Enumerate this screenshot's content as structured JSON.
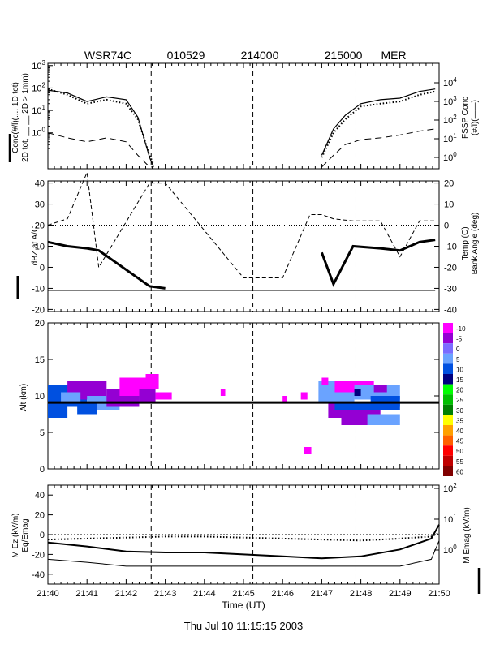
{
  "header": {
    "radar": "WSR74C",
    "date_code": "010529",
    "time_start": "214000",
    "time_end": "215000",
    "site": "MER"
  },
  "footer": {
    "timestamp": "Thu Jul 10 11:15:15 2003"
  },
  "x_axis": {
    "title": "Time (UT)",
    "tick_labels": [
      "21:40",
      "21:41",
      "21:42",
      "21:43",
      "21:44",
      "21:45",
      "21:46",
      "21:47",
      "21:48",
      "21:49",
      "21:50"
    ]
  },
  "colors": {
    "magenta": "#ff00ff",
    "purple": "#9400d3",
    "lightblue": "#6aa3ff",
    "blue": "#0050e0",
    "black": "#000000"
  },
  "chart_data": [
    {
      "type": "line",
      "panel": "concentration",
      "ylabel_left": "Conc(#/l)(.... 1D tot)",
      "ylabel_left_2": "2D tot, __ __ 2D > 1mm)",
      "ylabel_right": "FSSP Conc",
      "ylabel_right_2": "(#/l)(——)",
      "y_ticks_left": [
        "10^3",
        "10^2",
        "10^1",
        "10^0"
      ],
      "y_ticks_right": [
        "10^4",
        "10^3",
        "10^2",
        "10^1",
        "10^0"
      ],
      "ylim_log": [
        -1.6,
        3.1
      ],
      "x": [
        "21:40",
        "21:40.5",
        "21:41",
        "21:41.5",
        "21:42",
        "21:42.3",
        "21:42.6",
        "21:42.7",
        "21:47",
        "21:47.3",
        "21:47.6",
        "21:48",
        "21:48.5",
        "21:49",
        "21:49.5",
        "21:49.9"
      ],
      "series": [
        {
          "name": "2D tot",
          "values": [
            80,
            60,
            25,
            40,
            30,
            5,
            0.08,
            0.03,
            0.1,
            1.5,
            6,
            20,
            30,
            35,
            70,
            90
          ]
        },
        {
          "name": "1D tot",
          "values": [
            90,
            50,
            20,
            30,
            20,
            4,
            0.1,
            0.04,
            0.08,
            1.0,
            4,
            15,
            20,
            25,
            50,
            70
          ]
        },
        {
          "name": "2D > 1mm",
          "values": [
            1,
            0.6,
            0.4,
            0.6,
            0.4,
            0.1,
            0.03,
            0.03,
            0.03,
            0.1,
            0.3,
            0.5,
            0.6,
            0.8,
            1.2,
            1.5
          ]
        }
      ]
    },
    {
      "type": "line",
      "panel": "reflectivity_temp_bank",
      "ylabel_left": "dBZ at A/C",
      "ylabel_right": "Temp (C)",
      "ylabel_right_2": "Bank Angle (deg)",
      "y_ticks_left": [
        "40",
        "30",
        "20",
        "10",
        "0",
        "-10",
        "-20"
      ],
      "y_ticks_right": [
        "20",
        "10",
        "0",
        "-10",
        "-20",
        "-30",
        "-40"
      ],
      "ylim_left": [
        -21,
        41
      ],
      "ylim_right": [
        -41,
        21
      ],
      "x": [
        "21:40",
        "21:40.5",
        "21:41",
        "21:41.3",
        "21:42.6",
        "21:43",
        "21:45",
        "21:46",
        "21:46.7",
        "21:47",
        "21:47.3",
        "21:47.8",
        "21:48.5",
        "21:49",
        "21:49.5",
        "21:49.9"
      ],
      "series": [
        {
          "name": "dBZ",
          "values": [
            12,
            10,
            9,
            8,
            -9,
            -10,
            null,
            null,
            null,
            7,
            -8,
            10,
            9,
            8,
            12,
            13
          ]
        },
        {
          "name": "Temp",
          "values": [
            -31,
            -31,
            -31,
            -31,
            -31,
            -31,
            -31,
            -31,
            -31,
            -31,
            -31,
            -31,
            -31,
            -31,
            -31,
            -31
          ]
        },
        {
          "name": "Bank Angle",
          "values": [
            0,
            3,
            25,
            -20,
            20,
            20,
            -25,
            -25,
            5,
            5,
            3,
            2,
            2,
            -15,
            2,
            2
          ]
        }
      ]
    },
    {
      "type": "heatmap",
      "panel": "radar_profile",
      "ylabel": "Alt (km)",
      "y_ticks": [
        "20",
        "15",
        "10",
        "5",
        "0"
      ],
      "ylim": [
        0,
        20
      ],
      "flight_alt_km": 9.1,
      "legend_labels": [
        "-10",
        "-5",
        "0",
        "5",
        "10",
        "15",
        "20",
        "25",
        "30",
        "35",
        "40",
        "45",
        "50",
        "55",
        "60"
      ],
      "legend_colors": [
        "#ff00ff",
        "#9400d3",
        "#7b6cff",
        "#6aa3ff",
        "#0050e0",
        "#000080",
        "#00ff00",
        "#00c000",
        "#008000",
        "#ffff00",
        "#ffa000",
        "#ff6000",
        "#ff0000",
        "#c00000",
        "#800000"
      ]
    },
    {
      "type": "line",
      "panel": "electric_field",
      "ylabel_left": "M Ez (kV/m)",
      "ylabel_left_2": "Eq/Emag",
      "ylabel_right": "M Emag (kV/m)",
      "y_ticks_left": [
        "40",
        "20",
        "0",
        "-20",
        "-40"
      ],
      "y_ticks_right": [
        "10^2",
        "10^1",
        "10^0"
      ],
      "ylim": [
        -50,
        50
      ],
      "x": [
        "21:40",
        "21:41",
        "21:42",
        "21:43",
        "21:44",
        "21:45",
        "21:46",
        "21:47",
        "21:48",
        "21:49",
        "21:49.8",
        "21:50"
      ],
      "series": [
        {
          "name": "M Ez",
          "values": [
            -8,
            -12,
            -17,
            -18,
            -18,
            -20,
            -22,
            -24,
            -22,
            -15,
            -4,
            10
          ]
        },
        {
          "name": "Eq/Emag",
          "values": [
            -5,
            -4,
            -3,
            -2,
            -2,
            -3,
            -4,
            -5,
            -6,
            -4,
            -2,
            2
          ]
        },
        {
          "name": "M Emag",
          "values": [
            0.5,
            0.4,
            0.3,
            0.3,
            0.3,
            0.3,
            0.3,
            0.3,
            0.3,
            0.3,
            0.5,
            2
          ]
        }
      ]
    }
  ]
}
